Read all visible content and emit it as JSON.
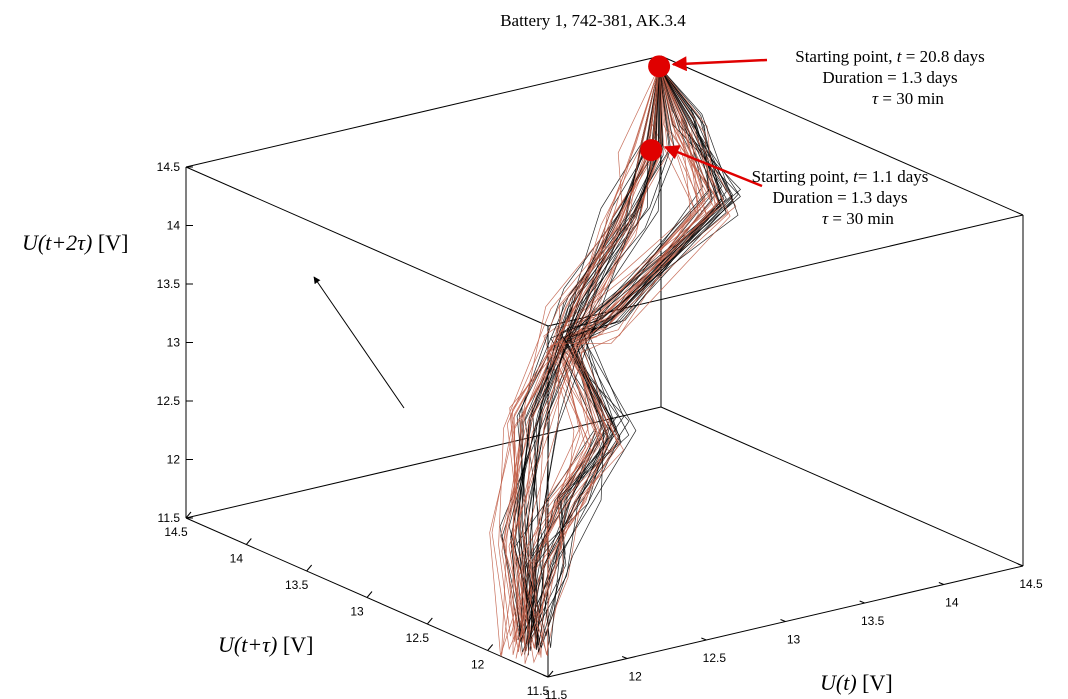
{
  "chart_data": {
    "type": "line",
    "projection": "3d",
    "title": "Battery 1, 742-381, AK.3.4",
    "xlabel": "U(t) [V]",
    "ylabel": "U(t+τ) [V]",
    "zlabel": "U(t+2τ) [V]",
    "axes": {
      "x": {
        "range": [
          11.5,
          14.5
        ],
        "ticks": [
          "11.5",
          "12",
          "12.5",
          "13",
          "13.5",
          "14",
          "14.5"
        ]
      },
      "y": {
        "range": [
          11.5,
          14.5
        ],
        "ticks": [
          "11.5",
          "12",
          "12.5",
          "13",
          "13.5",
          "14",
          "14.5"
        ]
      },
      "z": {
        "range": [
          11.5,
          14.5
        ],
        "ticks": [
          "11.5",
          "12",
          "12.5",
          "13",
          "13.5",
          "14",
          "14.5"
        ]
      }
    },
    "grid": false,
    "colors": {
      "early_cycles": "#c1604a",
      "late_cycles": "#000000",
      "marker": "#e00000"
    },
    "series": [
      {
        "values": [
          {
            "x": 14.45,
            "y": 14.45,
            "z": 14.45
          },
          {
            "x": 14.4,
            "y": 14.45,
            "z": 13.75
          },
          {
            "x": 14.2,
            "y": 14.4,
            "z": 13.25
          },
          {
            "x": 13.7,
            "y": 14.15,
            "z": 12.8
          },
          {
            "x": 13.0,
            "y": 13.6,
            "z": 12.3
          },
          {
            "x": 12.3,
            "y": 12.8,
            "z": 11.85
          },
          {
            "x": 11.75,
            "y": 12.0,
            "z": 11.45
          },
          {
            "x": 11.65,
            "y": 11.75,
            "z": 12.3
          },
          {
            "x": 11.75,
            "y": 11.65,
            "z": 12.85
          },
          {
            "x": 12.1,
            "y": 11.8,
            "z": 13.25
          },
          {
            "x": 12.3,
            "y": 12.4,
            "z": 13.7
          },
          {
            "x": 12.4,
            "y": 12.2,
            "z": 13.95
          },
          {
            "x": 13.8,
            "y": 13.1,
            "z": 14.1
          },
          {
            "x": 14.2,
            "y": 13.9,
            "z": 14.3
          },
          {
            "x": 14.45,
            "y": 14.45,
            "z": 14.45
          }
        ]
      }
    ],
    "annotations": [
      {
        "line1_prefix": "Starting point,",
        "line1_var": "t",
        "line1_suffix": " = 20.8 days",
        "line2": "Duration = 1.3 days",
        "line3_var": "τ",
        "line3_suffix": " = 30 min",
        "point": {
          "x": 14.45,
          "y": 14.45,
          "z": 14.45
        }
      },
      {
        "line1_prefix": "Starting point,",
        "line1_var": "t",
        "line1_suffix": "= 1.1 days",
        "line2": "Duration = 1.3 days",
        "line3_var": "τ",
        "line3_suffix": " = 30 min",
        "point": {
          "x": 14.4,
          "y": 14.45,
          "z": 13.75
        }
      }
    ]
  }
}
